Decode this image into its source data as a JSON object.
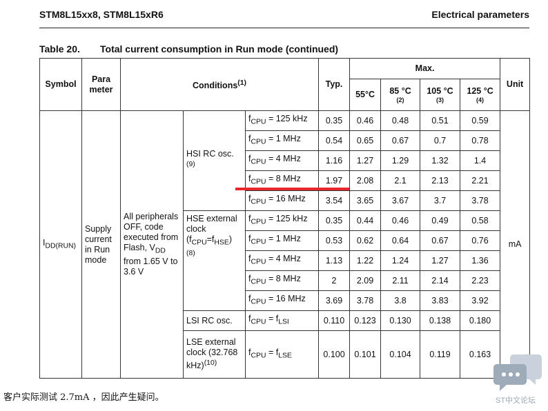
{
  "header": {
    "left": "STM8L15xx8, STM8L15xR6",
    "right": "Electrical parameters"
  },
  "caption": {
    "number": "Table 20.",
    "title": "Total current consumption in Run mode  (continued)"
  },
  "columns": {
    "symbol": "Symbol",
    "param_a": "Para",
    "param_b": "meter",
    "conditions": "Conditions",
    "conditions_sup": "(1)",
    "typ": "Typ.",
    "max": "Max.",
    "t55": "55°C",
    "t85": "85 °C",
    "t85_note": "(2)",
    "t105": "105 °C",
    "t105_note": "(3)",
    "t125": "125 °C",
    "t125_note": "(4)",
    "unit": "Unit"
  },
  "symbol": {
    "main": "I",
    "sub": "DD(RUN)"
  },
  "parameter": "Supply current in Run mode",
  "condition_main": {
    "l1": "All peripherals OFF, code executed from Flash, V",
    "sub": "DD",
    "l2": " from 1.65 V to 3.6 V"
  },
  "unit": "mA",
  "groups": [
    {
      "name": "HSI RC osc.",
      "note": "(9)"
    },
    {
      "name": "HSE external clock (f",
      "note": "(8)"
    },
    {
      "name": "LSI RC osc."
    },
    {
      "name": "LSE external clock (32.768 kHz)",
      "note": "(10)"
    }
  ],
  "hse_detail": {
    "cpu_sub": "CPU",
    "eq": "=f",
    "hse_sub": "HSE",
    "close": ")"
  },
  "rows": [
    {
      "freq": "125 kHz",
      "typ": "0.35",
      "m55": "0.46",
      "m85": "0.48",
      "m105": "0.51",
      "m125": "0.59"
    },
    {
      "freq": "1 MHz",
      "typ": "0.54",
      "m55": "0.65",
      "m85": "0.67",
      "m105": "0.7",
      "m125": "0.78"
    },
    {
      "freq": "4 MHz",
      "typ": "1.16",
      "m55": "1.27",
      "m85": "1.29",
      "m105": "1.32",
      "m125": "1.4"
    },
    {
      "freq": "8 MHz",
      "typ": "1.97",
      "m55": "2.08",
      "m85": "2.1",
      "m105": "2.13",
      "m125": "2.21"
    },
    {
      "freq": "16 MHz",
      "typ": "3.54",
      "m55": "3.65",
      "m85": "3.67",
      "m105": "3.7",
      "m125": "3.78"
    },
    {
      "freq": "125 kHz",
      "typ": "0.35",
      "m55": "0.44",
      "m85": "0.46",
      "m105": "0.49",
      "m125": "0.58"
    },
    {
      "freq": "1 MHz",
      "typ": "0.53",
      "m55": "0.62",
      "m85": "0.64",
      "m105": "0.67",
      "m125": "0.76"
    },
    {
      "freq": "4 MHz",
      "typ": "1.13",
      "m55": "1.22",
      "m85": "1.24",
      "m105": "1.27",
      "m125": "1.36"
    },
    {
      "freq": "8 MHz",
      "typ": "2",
      "m55": "2.09",
      "m85": "2.11",
      "m105": "2.14",
      "m125": "2.23"
    },
    {
      "freq": "16 MHz",
      "typ": "3.69",
      "m55": "3.78",
      "m85": "3.8",
      "m105": "3.83",
      "m125": "3.92"
    },
    {
      "freq": "LSI",
      "typ": "0.110",
      "m55": "0.123",
      "m85": "0.130",
      "m105": "0.138",
      "m125": "0.180"
    },
    {
      "freq": "LSE",
      "typ": "0.100",
      "m55": "0.101",
      "m85": "0.104",
      "m105": "0.119",
      "m125": "0.163"
    }
  ],
  "fcpu": {
    "f": "f",
    "sub": "CPU",
    "eq": " = "
  },
  "note": "客户实际测试 2.7mA ，因此产生疑问。",
  "watermark": {
    "text": "ST中文论坛",
    "icon": "chat-bubbles-icon",
    "color": "#9aa7b5"
  },
  "highlight": {
    "color": "#e8262e",
    "row": 4
  }
}
